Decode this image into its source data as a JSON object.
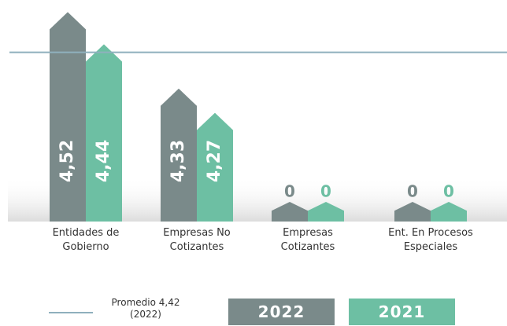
{
  "chart_data": {
    "type": "bar",
    "categories": [
      "Entidades de Gobierno",
      "Empresas No Cotizantes",
      "Empresas Cotizantes",
      "Ent. En Procesos Especiales"
    ],
    "series": [
      {
        "name": "2022",
        "color": "#7a8a8a",
        "values": [
          4.52,
          4.33,
          0,
          0
        ],
        "value_labels": [
          "4,52",
          "4,33",
          "0",
          "0"
        ]
      },
      {
        "name": "2021",
        "color": "#6dbfa3",
        "values": [
          4.44,
          4.27,
          0,
          0
        ],
        "value_labels": [
          "4,44",
          "4,27",
          "0",
          "0"
        ]
      }
    ],
    "ylim": [
      4,
      4.55
    ],
    "average": {
      "value": 4.42,
      "label": "Promedio 4,42 (2022)",
      "color": "#8fb0bd"
    }
  }
}
